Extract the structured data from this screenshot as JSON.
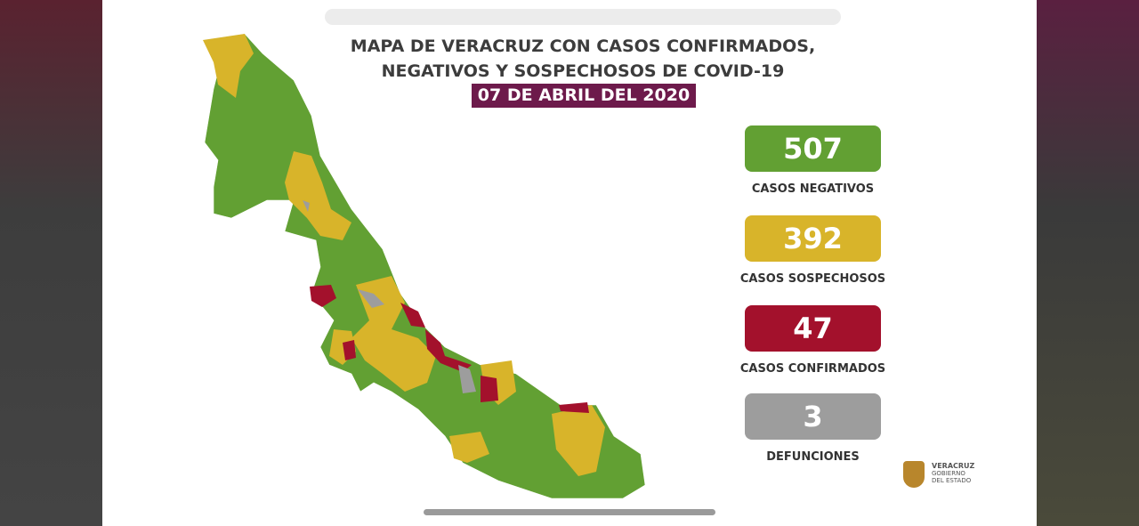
{
  "header": {
    "title_lines": [
      "MAPA DE VERACRUZ CON CASOS CONFIRMADOS,",
      "NEGATIVOS Y SOSPECHOSOS DE COVID-19"
    ],
    "date": "07 DE ABRIL DEL 2020"
  },
  "stats": [
    {
      "value": 507,
      "label": "CASOS NEGATIVOS"
    },
    {
      "value": 392,
      "label": "CASOS SOSPECHOSOS"
    },
    {
      "value": 47,
      "label": "CASOS CONFIRMADOS"
    },
    {
      "value": 3,
      "label": "DEFUNCIONES"
    }
  ],
  "logo": {
    "lines": [
      "VERACRUZ",
      "GOBIERNO",
      "DEL ESTADO"
    ]
  }
}
